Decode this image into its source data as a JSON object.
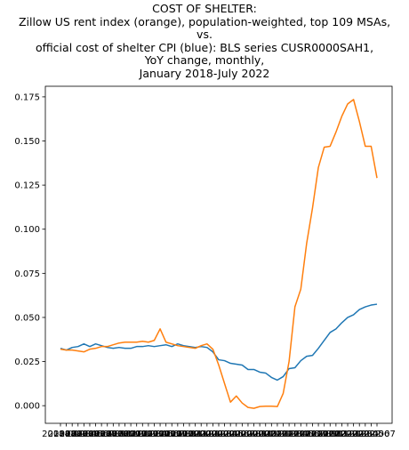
{
  "chart_data": {
    "type": "line",
    "title_lines": [
      "COST OF SHELTER:",
      "Zillow US rent index (orange), population-weighted, top 109 MSAs,",
      "vs.",
      "official cost of shelter CPI (blue): BLS series CUSR0000SAH1,",
      "YoY change, monthly,",
      "January 2018-July 2022"
    ],
    "xlabel": "",
    "ylabel": "",
    "x": [
      "2018-01",
      "2018-02",
      "2018-03",
      "2018-04",
      "2018-05",
      "2018-06",
      "2018-07",
      "2018-08",
      "2018-09",
      "2018-10",
      "2018-11",
      "2018-12",
      "2019-01",
      "2019-02",
      "2019-03",
      "2019-04",
      "2019-05",
      "2019-06",
      "2019-07",
      "2019-08",
      "2019-09",
      "2019-10",
      "2019-11",
      "2019-12",
      "2020-01",
      "2020-02",
      "2020-03",
      "2020-04",
      "2020-05",
      "2020-06",
      "2020-07",
      "2020-08",
      "2020-09",
      "2020-10",
      "2020-11",
      "2020-12",
      "2021-01",
      "2021-02",
      "2021-03",
      "2021-04",
      "2021-05",
      "2021-06",
      "2021-07",
      "2021-08",
      "2021-09",
      "2021-10",
      "2021-11",
      "2021-12",
      "2022-01",
      "2022-02",
      "2022-03",
      "2022-04",
      "2022-05",
      "2022-06",
      "2022-07"
    ],
    "x_tick_first": "2018-01",
    "x_tick_last": "2022-07",
    "y_ticks": [
      "0.000",
      "0.025",
      "0.050",
      "0.075",
      "0.100",
      "0.125",
      "0.150",
      "0.175"
    ],
    "ylim": [
      -0.01,
      0.181
    ],
    "grid": false,
    "series": [
      {
        "color": "#1f77b4",
        "values": [
          0.0325,
          0.0315,
          0.033,
          0.0335,
          0.035,
          0.0335,
          0.035,
          0.034,
          0.033,
          0.0325,
          0.033,
          0.0325,
          0.0325,
          0.0335,
          0.0335,
          0.034,
          0.0335,
          0.034,
          0.0345,
          0.0335,
          0.035,
          0.034,
          0.0335,
          0.033,
          0.0335,
          0.033,
          0.0305,
          0.026,
          0.0255,
          0.024,
          0.0235,
          0.023,
          0.0205,
          0.0205,
          0.019,
          0.0185,
          0.016,
          0.0145,
          0.0165,
          0.021,
          0.0215,
          0.0255,
          0.028,
          0.0285,
          0.0325,
          0.037,
          0.0415,
          0.0435,
          0.047,
          0.05,
          0.0515,
          0.0545,
          0.056,
          0.057,
          0.0575
        ]
      },
      {
        "color": "#ff7f0e",
        "values": [
          0.032,
          0.0315,
          0.0315,
          0.031,
          0.0305,
          0.032,
          0.0325,
          0.0335,
          0.0335,
          0.0345,
          0.0355,
          0.036,
          0.036,
          0.036,
          0.0365,
          0.036,
          0.037,
          0.0435,
          0.036,
          0.035,
          0.034,
          0.0335,
          0.033,
          0.0325,
          0.034,
          0.035,
          0.032,
          0.023,
          0.0125,
          0.002,
          0.0055,
          0.0015,
          -0.001,
          -0.0015,
          -0.0005,
          -0.0003,
          -0.0003,
          -0.0005,
          0.007,
          0.025,
          0.056,
          0.066,
          0.092,
          0.112,
          0.135,
          0.1465,
          0.147,
          0.155,
          0.164,
          0.171,
          0.1735,
          0.161,
          0.147,
          0.147,
          0.129
        ]
      }
    ]
  }
}
